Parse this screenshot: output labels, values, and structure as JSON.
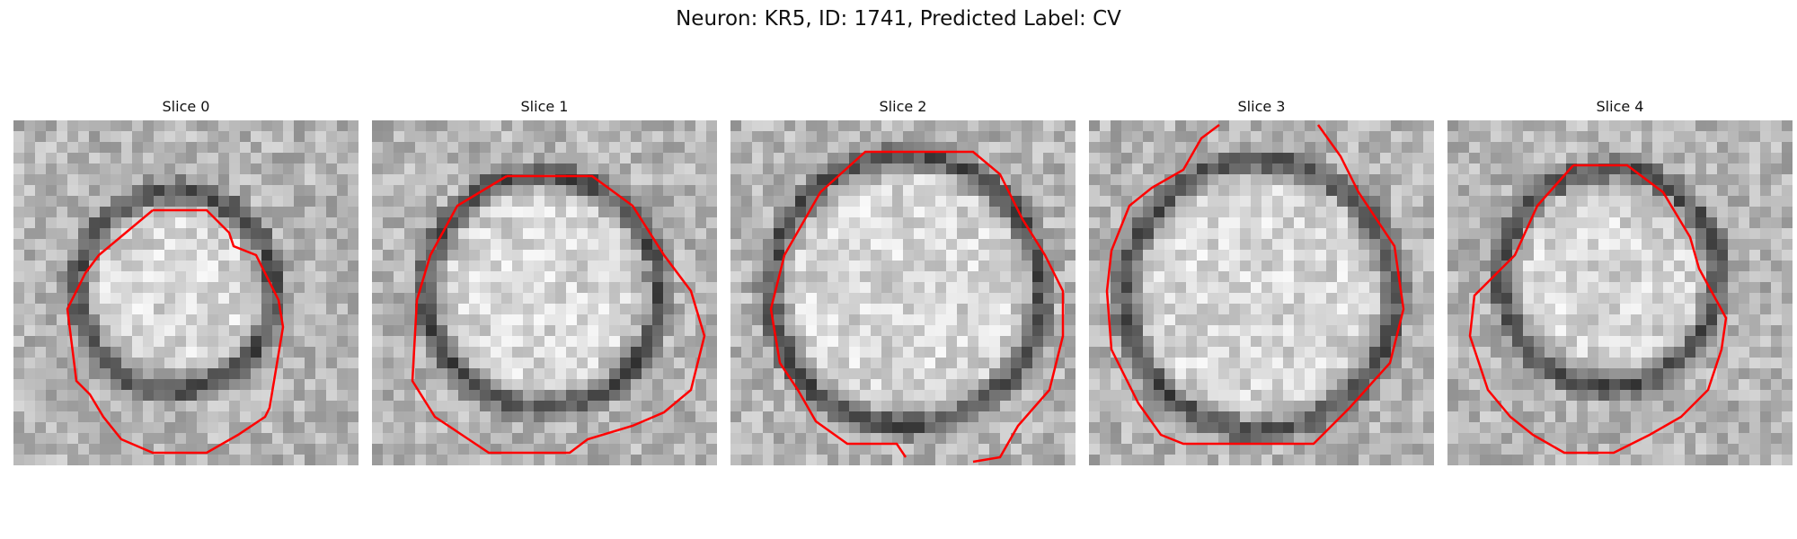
{
  "figure": {
    "title": "Neuron: KR5, ID: 1741, Predicted Label: CV"
  },
  "panels": [
    {
      "title": "Slice 0"
    },
    {
      "title": "Slice 1"
    },
    {
      "title": "Slice 2"
    },
    {
      "title": "Slice 3"
    },
    {
      "title": "Slice 4"
    }
  ],
  "colors": {
    "contour": "#ff0000",
    "background": "#ffffff"
  }
}
